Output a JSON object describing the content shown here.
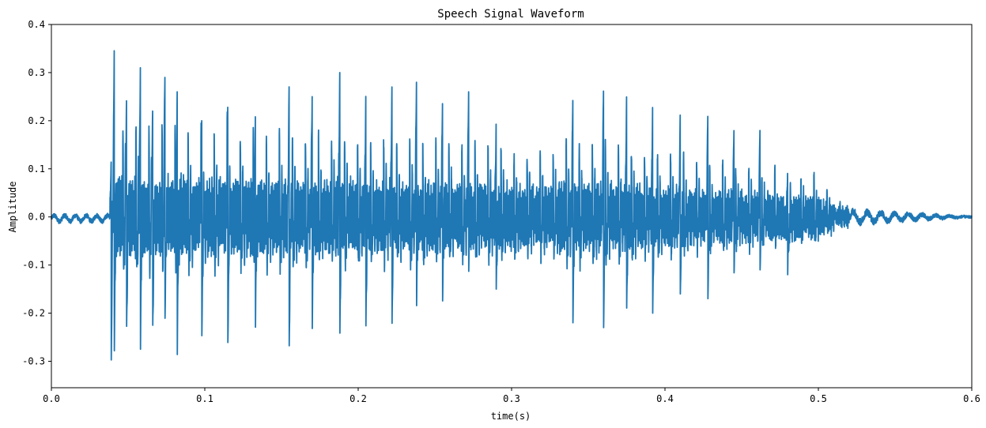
{
  "chart_data": {
    "type": "line",
    "title": "Speech Signal Waveform",
    "xlabel": "time(s)",
    "ylabel": "Amplitude",
    "xlim": [
      0.0,
      0.6
    ],
    "ylim": [
      -0.355,
      0.4
    ],
    "xticks": [
      "0.0",
      "0.1",
      "0.2",
      "0.3",
      "0.4",
      "0.5",
      "0.6"
    ],
    "yticks": [
      "-0.3",
      "-0.2",
      "-0.1",
      "0.0",
      "0.1",
      "0.2",
      "0.3",
      "0.4"
    ],
    "grid": false,
    "series_color": "#1f77b4",
    "voiced_onset_s": 0.038,
    "voiced_offset_s": 0.5,
    "pitch_period_s": 0.0085,
    "peaks": [
      {
        "t": 0.039,
        "max": 0.12,
        "min": -0.31
      },
      {
        "t": 0.041,
        "max": 0.365,
        "min": -0.29
      },
      {
        "t": 0.049,
        "max": 0.25,
        "min": -0.24
      },
      {
        "t": 0.058,
        "max": 0.31,
        "min": -0.3
      },
      {
        "t": 0.066,
        "max": 0.22,
        "min": -0.25
      },
      {
        "t": 0.074,
        "max": 0.29,
        "min": -0.23
      },
      {
        "t": 0.082,
        "max": 0.26,
        "min": -0.32
      },
      {
        "t": 0.098,
        "max": 0.2,
        "min": -0.26
      },
      {
        "t": 0.115,
        "max": 0.24,
        "min": -0.27
      },
      {
        "t": 0.133,
        "max": 0.22,
        "min": -0.24
      },
      {
        "t": 0.155,
        "max": 0.28,
        "min": -0.28
      },
      {
        "t": 0.17,
        "max": 0.25,
        "min": -0.25
      },
      {
        "t": 0.188,
        "max": 0.3,
        "min": -0.27
      },
      {
        "t": 0.205,
        "max": 0.26,
        "min": -0.24
      },
      {
        "t": 0.222,
        "max": 0.27,
        "min": -0.25
      },
      {
        "t": 0.238,
        "max": 0.28,
        "min": -0.2
      },
      {
        "t": 0.255,
        "max": 0.25,
        "min": -0.18
      },
      {
        "t": 0.272,
        "max": 0.26,
        "min": -0.12
      },
      {
        "t": 0.29,
        "max": 0.21,
        "min": -0.15
      },
      {
        "t": 0.34,
        "max": 0.27,
        "min": -0.22
      },
      {
        "t": 0.36,
        "max": 0.29,
        "min": -0.23
      },
      {
        "t": 0.375,
        "max": 0.26,
        "min": -0.2
      },
      {
        "t": 0.392,
        "max": 0.25,
        "min": -0.2
      },
      {
        "t": 0.41,
        "max": 0.23,
        "min": -0.16
      },
      {
        "t": 0.428,
        "max": 0.23,
        "min": -0.17
      },
      {
        "t": 0.445,
        "max": 0.19,
        "min": -0.12
      },
      {
        "t": 0.462,
        "max": 0.2,
        "min": -0.11
      },
      {
        "t": 0.48,
        "max": 0.1,
        "min": -0.12
      }
    ]
  }
}
